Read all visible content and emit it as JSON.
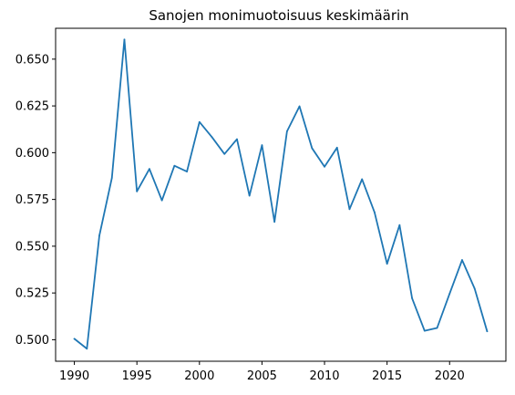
{
  "chart_data": {
    "type": "line",
    "title": "Sanojen monimuotoisuus keskimäärin",
    "xlabel": "",
    "ylabel": "",
    "xlim": [
      1988.5,
      2024.5
    ],
    "ylim": [
      0.4885,
      0.6665
    ],
    "grid": false,
    "line_color": "#1f77b4",
    "x_ticks": [
      1990,
      1995,
      2000,
      2005,
      2010,
      2015,
      2020
    ],
    "x_tick_labels": [
      "1990",
      "1995",
      "2000",
      "2005",
      "2010",
      "2015",
      "2020"
    ],
    "y_ticks": [
      0.5,
      0.525,
      0.55,
      0.575,
      0.6,
      0.625,
      0.65
    ],
    "y_tick_labels": [
      "0.500",
      "0.525",
      "0.550",
      "0.575",
      "0.600",
      "0.625",
      "0.650"
    ],
    "x": [
      1990,
      1991,
      1992,
      1993,
      1994,
      1995,
      1996,
      1997,
      1998,
      1999,
      2000,
      2001,
      2002,
      2003,
      2004,
      2005,
      2006,
      2007,
      2008,
      2009,
      2010,
      2011,
      2012,
      2013,
      2014,
      2015,
      2016,
      2017,
      2018,
      2019,
      2020,
      2021,
      2022,
      2023
    ],
    "y": [
      0.5005,
      0.4952,
      0.5557,
      0.5865,
      0.6605,
      0.5793,
      0.5913,
      0.5745,
      0.593,
      0.5899,
      0.6164,
      0.6083,
      0.5993,
      0.6072,
      0.577,
      0.604,
      0.563,
      0.6114,
      0.6248,
      0.6024,
      0.5925,
      0.6027,
      0.5698,
      0.5858,
      0.5681,
      0.5406,
      0.5613,
      0.5222,
      0.5048,
      0.5063,
      0.5246,
      0.5426,
      0.5274,
      0.5045
    ]
  }
}
